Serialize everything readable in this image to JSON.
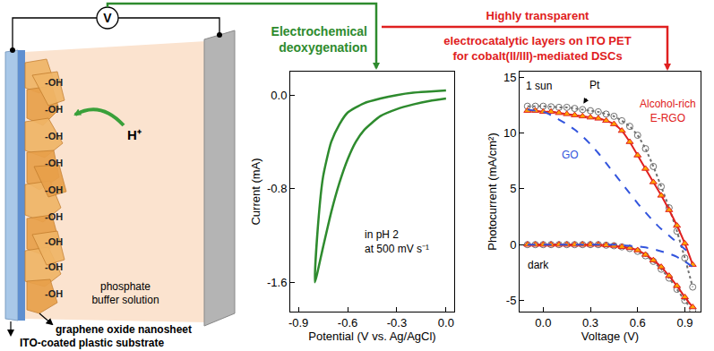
{
  "diagram": {
    "voltmeter": "V",
    "proton": "H⁺",
    "hydroxyl_labels": [
      "-OH",
      "-OH",
      "-OH",
      "-OH",
      "-OH",
      "-OH",
      "-OH",
      "-OH",
      "-OH"
    ],
    "solution": "phosphate buffer solution",
    "nanosheet": "graphene oxide nanosheet",
    "substrate": "ITO-coated plastic substrate",
    "heading_green": [
      "Electrochemical",
      "deoxygenation"
    ],
    "heading_red": [
      "Highly transparent",
      "electrocatalytic layers on ITO PET",
      "for cobalt(II/III)-mediated DSCs"
    ]
  },
  "chart_data": [
    {
      "type": "line",
      "x_label": "Potential (V vs. Ag/AgCl)",
      "y_label": "Current (mA)",
      "annotations": [
        [
          "in pH 2",
          "at 500 mV s⁻¹"
        ]
      ],
      "color": "#2e8b2e",
      "x": [
        0,
        -0.1,
        -0.2,
        -0.3,
        -0.4,
        -0.5,
        -0.55,
        -0.6,
        -0.65,
        -0.7,
        -0.75,
        -0.8,
        -0.78,
        -0.75,
        -0.7,
        -0.65,
        -0.6,
        -0.5,
        -0.4,
        -0.3,
        -0.2,
        -0.1,
        0
      ],
      "values": [
        -0.03,
        -0.05,
        -0.08,
        -0.12,
        -0.18,
        -0.3,
        -0.4,
        -0.55,
        -0.75,
        -1.0,
        -1.3,
        -1.6,
        -1.1,
        -0.7,
        -0.4,
        -0.25,
        -0.15,
        -0.07,
        -0.03,
        0.0,
        0.02,
        0.03,
        0.04
      ],
      "xlim": [
        -0.95,
        0.05
      ],
      "ylim": [
        -1.85,
        0.2
      ],
      "xticks": [
        -0.9,
        -0.6,
        -0.3,
        {
          "value": 0,
          "label": "0.0"
        }
      ],
      "yticks": [
        -1.6,
        -0.8,
        {
          "value": 0,
          "label": "0.0"
        }
      ]
    },
    {
      "type": "line",
      "x_label": "Voltage (V)",
      "y_label": "Photocurrent (mA/cm²)",
      "annotations": [
        "1 sun",
        "dark"
      ],
      "x": [
        -0.1,
        -0.05,
        0,
        0.05,
        0.1,
        0.15,
        0.2,
        0.25,
        0.3,
        0.35,
        0.4,
        0.45,
        0.5,
        0.55,
        0.6,
        0.65,
        0.7,
        0.75,
        0.8,
        0.85,
        0.9,
        0.95
      ],
      "series": [
        {
          "name": "Pt",
          "color": "#707070",
          "line_style": "dot",
          "marker": "circle-open",
          "values": [
            12.4,
            12.4,
            12.4,
            12.35,
            12.3,
            12.3,
            12.2,
            12.1,
            12.0,
            11.9,
            11.7,
            11.5,
            11.1,
            10.6,
            9.8,
            8.6,
            7.0,
            5.2,
            3.3,
            1.2,
            -1.2,
            -3.8
          ],
          "dark_values": [
            0,
            0,
            0,
            0,
            0,
            0,
            0,
            0,
            0,
            0,
            -0.05,
            -0.1,
            -0.2,
            -0.35,
            -0.6,
            -1.0,
            -1.5,
            -2.2,
            -3.0,
            -4.0,
            -5.0,
            -5.9
          ]
        },
        {
          "name": "Alcohol-rich E-RGO",
          "color": "#e02020",
          "line_style": "solid",
          "marker": "triangle-up",
          "values": [
            12.0,
            12.0,
            11.9,
            11.9,
            11.8,
            11.7,
            11.6,
            11.5,
            11.4,
            11.3,
            11.1,
            10.8,
            10.2,
            9.2,
            8.0,
            6.8,
            5.6,
            4.4,
            3.1,
            1.7,
            0.1,
            -1.8
          ],
          "dark_values": [
            0,
            0,
            0,
            0,
            0,
            0,
            0,
            0,
            0,
            0,
            -0.05,
            -0.1,
            -0.2,
            -0.3,
            -0.5,
            -0.9,
            -1.4,
            -2.0,
            -2.8,
            -3.7,
            -4.7,
            -5.6
          ]
        },
        {
          "name": "GO",
          "color": "#3355dd",
          "line_style": "dash",
          "marker": "none",
          "values": [
            12.1,
            12.0,
            11.9,
            11.6,
            11.2,
            10.8,
            10.3,
            9.7,
            9.0,
            8.2,
            7.3,
            6.4,
            5.5,
            4.6,
            3.7,
            2.9,
            2.1,
            1.4,
            0.8,
            0.2,
            -0.4,
            -1.0
          ],
          "dark_values": [
            0,
            0,
            0,
            0,
            0,
            0,
            0,
            0,
            0,
            0,
            0,
            0,
            -0.05,
            -0.1,
            -0.15,
            -0.25,
            -0.4,
            -0.6,
            -0.8,
            -1.1,
            -1.5,
            -2.0
          ]
        }
      ],
      "xlim": [
        -0.15,
        1.0
      ],
      "ylim": [
        -6,
        15.5
      ],
      "xticks": [
        {
          "value": 0,
          "label": "0.0"
        },
        0.3,
        0.6,
        0.9
      ],
      "yticks": [
        -5,
        0,
        5,
        10,
        15
      ]
    }
  ]
}
